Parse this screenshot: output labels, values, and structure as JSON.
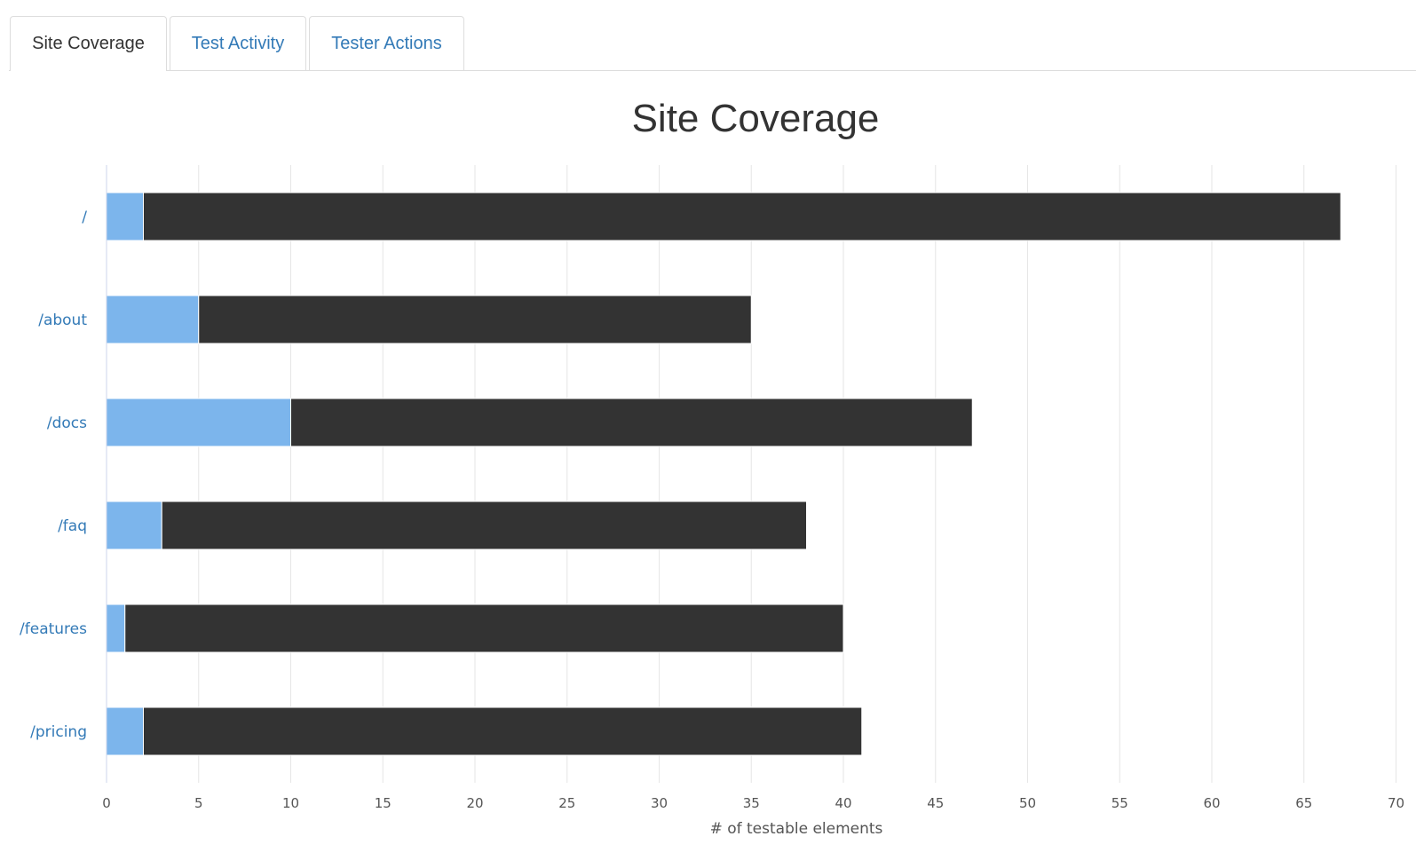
{
  "tabs": [
    {
      "label": "Site Coverage",
      "active": true
    },
    {
      "label": "Test Activity",
      "active": false
    },
    {
      "label": "Tester Actions",
      "active": false
    }
  ],
  "colors": {
    "tested": "#7cb5ec",
    "untested": "#333333",
    "link": "#337ab7",
    "grid": "#e6e6e6",
    "axis": "#ccd6eb"
  },
  "chart_data": {
    "type": "bar",
    "orientation": "horizontal",
    "stacked": true,
    "title": "Site Coverage",
    "xlabel": "# of testable elements",
    "categories": [
      "/",
      "/about",
      "/docs",
      "/faq",
      "/features",
      "/pricing"
    ],
    "series": [
      {
        "color": "#7cb5ec",
        "values": [
          2,
          5,
          10,
          3,
          1,
          2
        ]
      },
      {
        "color": "#333333",
        "values": [
          65,
          30,
          37,
          35,
          39,
          39
        ]
      }
    ],
    "xlim": [
      0,
      70
    ],
    "tick_step": 5,
    "ticks": [
      "0",
      "5",
      "10",
      "15",
      "20",
      "25",
      "30",
      "35",
      "40",
      "45",
      "50",
      "55",
      "60",
      "65",
      "70"
    ],
    "grid": true
  }
}
